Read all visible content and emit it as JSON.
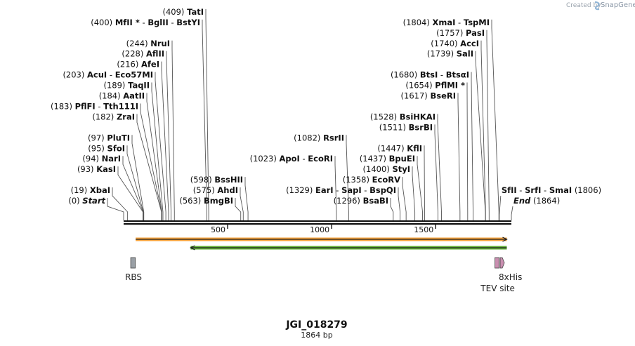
{
  "logo": {
    "created_by": "Created by",
    "brand": "SnapGene"
  },
  "map": {
    "title": "JGI_018279",
    "length_label": "1864 bp",
    "length": 1864
  },
  "ticks": [
    {
      "value": 500,
      "label": "500"
    },
    {
      "value": 1000,
      "label": "1000"
    },
    {
      "value": 1500,
      "label": "1500"
    }
  ],
  "sites": [
    {
      "pos": "(0)",
      "names": [
        {
          "t": "Start",
          "i": true
        }
      ],
      "bp": 0,
      "row": 0
    },
    {
      "pos": "(19)",
      "names": [
        {
          "t": "XbaI"
        }
      ],
      "bp": 19,
      "row": 1
    },
    {
      "pos": "(93)",
      "names": [
        {
          "t": "KasI"
        }
      ],
      "bp": 93,
      "row": 3
    },
    {
      "pos": "(94)",
      "names": [
        {
          "t": "NarI"
        }
      ],
      "bp": 94,
      "row": 4
    },
    {
      "pos": "(95)",
      "names": [
        {
          "t": "SfoI"
        }
      ],
      "bp": 95,
      "row": 5
    },
    {
      "pos": "(97)",
      "names": [
        {
          "t": "PluTI"
        }
      ],
      "bp": 97,
      "row": 6
    },
    {
      "pos": "(182)",
      "names": [
        {
          "t": "ZraI"
        }
      ],
      "bp": 182,
      "row": 8
    },
    {
      "pos": "(183)",
      "names": [
        {
          "t": "PflFI"
        },
        {
          "t": "Tth111I"
        }
      ],
      "bp": 183,
      "row": 9
    },
    {
      "pos": "(184)",
      "names": [
        {
          "t": "AatII"
        }
      ],
      "bp": 184,
      "row": 10
    },
    {
      "pos": "(189)",
      "names": [
        {
          "t": "TaqII"
        }
      ],
      "bp": 189,
      "row": 11
    },
    {
      "pos": "(203)",
      "names": [
        {
          "t": "AcuI"
        },
        {
          "t": "Eco57MI"
        }
      ],
      "bp": 203,
      "row": 12
    },
    {
      "pos": "(216)",
      "names": [
        {
          "t": "AfeI"
        }
      ],
      "bp": 216,
      "row": 13
    },
    {
      "pos": "(228)",
      "names": [
        {
          "t": "AflII"
        }
      ],
      "bp": 228,
      "row": 14
    },
    {
      "pos": "(244)",
      "names": [
        {
          "t": "NruI"
        }
      ],
      "bp": 244,
      "row": 15
    },
    {
      "pos": "(400)",
      "names": [
        {
          "t": "MfII *"
        },
        {
          "t": "BglII"
        },
        {
          "t": "BstYI"
        }
      ],
      "bp": 400,
      "row": 17
    },
    {
      "pos": "(409)",
      "names": [
        {
          "t": "TatI"
        }
      ],
      "bp": 409,
      "row": 18
    },
    {
      "pos": "(563)",
      "names": [
        {
          "t": "BmgBI"
        }
      ],
      "bp": 563,
      "row": 0
    },
    {
      "pos": "(575)",
      "names": [
        {
          "t": "AhdI"
        }
      ],
      "bp": 575,
      "row": 1
    },
    {
      "pos": "(598)",
      "names": [
        {
          "t": "BssHII"
        }
      ],
      "bp": 598,
      "row": 2
    },
    {
      "pos": "(1023)",
      "names": [
        {
          "t": "ApoI"
        },
        {
          "t": "EcoRI"
        }
      ],
      "bp": 1023,
      "row": 4
    },
    {
      "pos": "(1082)",
      "names": [
        {
          "t": "RsrII"
        }
      ],
      "bp": 1082,
      "row": 6
    },
    {
      "pos": "(1296)",
      "names": [
        {
          "t": "BsaBI"
        }
      ],
      "bp": 1296,
      "row": 0
    },
    {
      "pos": "(1329)",
      "names": [
        {
          "t": "EarI"
        },
        {
          "t": "SapI"
        },
        {
          "t": "BspQI"
        }
      ],
      "bp": 1329,
      "row": 1
    },
    {
      "pos": "(1358)",
      "names": [
        {
          "t": "EcoRV"
        }
      ],
      "bp": 1358,
      "row": 2
    },
    {
      "pos": "(1400)",
      "names": [
        {
          "t": "StyI"
        }
      ],
      "bp": 1400,
      "row": 3
    },
    {
      "pos": "(1437)",
      "names": [
        {
          "t": "BpuEI"
        }
      ],
      "bp": 1437,
      "row": 4
    },
    {
      "pos": "(1447)",
      "names": [
        {
          "t": "KflI"
        }
      ],
      "bp": 1447,
      "row": 5
    },
    {
      "pos": "(1511)",
      "names": [
        {
          "t": "BsrBI"
        }
      ],
      "bp": 1511,
      "row": 7
    },
    {
      "pos": "(1528)",
      "names": [
        {
          "t": "BsiHKAI"
        }
      ],
      "bp": 1528,
      "row": 8
    },
    {
      "pos": "(1617)",
      "names": [
        {
          "t": "BseRI"
        }
      ],
      "bp": 1617,
      "row": 10
    },
    {
      "pos": "(1654)",
      "names": [
        {
          "t": "PflMI *"
        }
      ],
      "bp": 1654,
      "row": 11
    },
    {
      "pos": "(1680)",
      "names": [
        {
          "t": "BtsI"
        },
        {
          "t": "BtsαI"
        }
      ],
      "bp": 1680,
      "row": 12
    },
    {
      "pos": "(1739)",
      "names": [
        {
          "t": "SalI"
        }
      ],
      "bp": 1739,
      "row": 14
    },
    {
      "pos": "(1740)",
      "names": [
        {
          "t": "AccI"
        }
      ],
      "bp": 1740,
      "row": 15
    },
    {
      "pos": "(1757)",
      "names": [
        {
          "t": "PasI"
        }
      ],
      "bp": 1757,
      "row": 16
    },
    {
      "pos": "(1804)",
      "names": [
        {
          "t": "XmaI"
        },
        {
          "t": "TspMI"
        }
      ],
      "bp": 1804,
      "row": 17
    }
  ],
  "right_sites": [
    {
      "pos": "(1806)",
      "names": [
        {
          "t": "SfII"
        },
        {
          "t": "SrfI"
        },
        {
          "t": "SmaI"
        }
      ],
      "bp": 1806,
      "row": 1
    },
    {
      "pos": "(1864)",
      "names": [
        {
          "t": "End",
          "i": true
        }
      ],
      "bp": 1864,
      "row": 0
    }
  ],
  "features": [
    {
      "name": "RBS",
      "type": "box",
      "bp_start": 34,
      "bp_end": 56,
      "color": "#9aa0a6",
      "label_side": "below"
    },
    {
      "name": "8xHis",
      "type": "arrow",
      "bp_start": 1810,
      "bp_end": 1833,
      "color": "#c98fb0",
      "label_side": "right"
    },
    {
      "name": "TEV site",
      "type": "box",
      "bp_start": 1785,
      "bp_end": 1805,
      "color": "#c98fb0",
      "label_side": "below"
    }
  ],
  "orfs": [
    {
      "name": "orf-forward",
      "bp_start": 58,
      "bp_end": 1842,
      "color": "#f4a13a",
      "direction": "forward"
    },
    {
      "name": "orf-reverse",
      "bp_start": 322,
      "bp_end": 1842,
      "color": "#5fae34",
      "direction": "reverse"
    }
  ],
  "colors": {
    "backbone": "#111111",
    "line": "#555555"
  }
}
